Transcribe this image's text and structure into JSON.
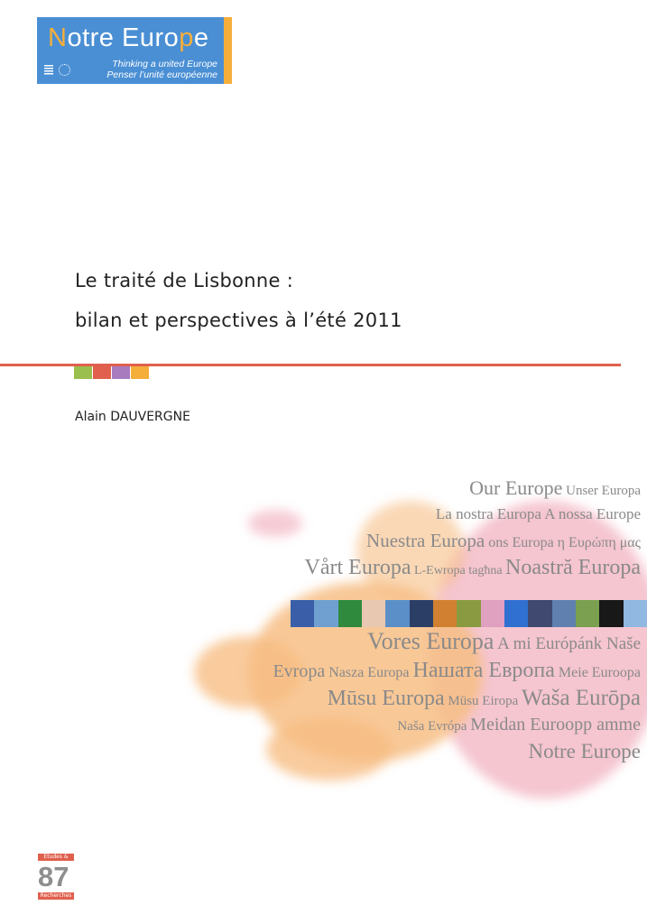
{
  "logo": {
    "name_first": "N",
    "name_mid": "otre Euro",
    "name_p": "p",
    "name_end": "e",
    "tagline_en": "Thinking a united Europe",
    "tagline_fr": "Penser l’unité européenne"
  },
  "title": {
    "line1": "Le traité de Lisbonne :",
    "line2": "bilan et perspectives à l’été 2011"
  },
  "author": "Alain DAUVERGNE",
  "accent_colors": [
    "#9bbf4e",
    "#e0604d",
    "#a87bbf",
    "#f6ae3a"
  ],
  "cover_lines": [
    [
      {
        "t": "Our Europe",
        "s": 22
      },
      {
        "t": " Unser Europa",
        "s": 15
      }
    ],
    [
      {
        "t": "La nostra Europa A nossa Europe",
        "s": 17
      }
    ],
    [
      {
        "t": "Nuestra Europa",
        "s": 21
      },
      {
        "t": " ons Europa η Ευρώπη μας",
        "s": 16
      }
    ],
    [
      {
        "t": "Vårt Europa",
        "s": 24
      },
      {
        "t": " L-Ewropa tagħna ",
        "s": 14
      },
      {
        "t": "Noastră Europa",
        "s": 24
      }
    ],
    [
      {
        "t": "Vores Europa",
        "s": 26
      },
      {
        "t": " A mi Európánk Naše",
        "s": 19
      }
    ],
    [
      {
        "t": "Evropa",
        "s": 20
      },
      {
        "t": " Nasza Europa ",
        "s": 16
      },
      {
        "t": "Нашата Европа",
        "s": 24
      },
      {
        "t": " Meie Euroopa",
        "s": 16
      }
    ],
    [
      {
        "t": "Mūsu Europa",
        "s": 24
      },
      {
        "t": " Mūsu Eiropa ",
        "s": 15
      },
      {
        "t": "Waša Eurōpa",
        "s": 25
      }
    ],
    [
      {
        "t": "Naša Evrópa ",
        "s": 15
      },
      {
        "t": "Meidan Euroopp amme",
        "s": 20
      }
    ],
    [
      {
        "t": "Notre Europe",
        "s": 23
      }
    ]
  ],
  "badge": {
    "top": "Etudes &",
    "number": "87",
    "bottom": "Recherches"
  }
}
